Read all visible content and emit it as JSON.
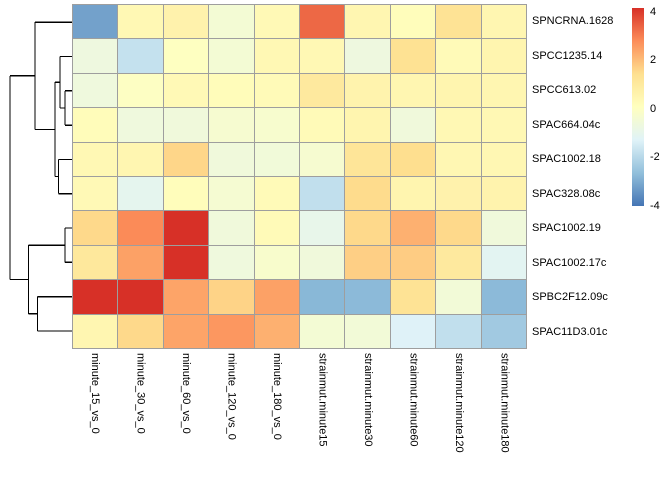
{
  "chart_data": {
    "type": "heatmap",
    "title": "",
    "columns": [
      "minute_15_vs_0",
      "minute_30_vs_0",
      "minute_60_vs_0",
      "minute_120_vs_0",
      "minute_180_vs_0",
      "strainmut.minute15",
      "strainmut.minute30",
      "strainmut.minute60",
      "strainmut.minute120",
      "strainmut.minute180"
    ],
    "rows": [
      "SPNCRNA.1628",
      "SPCC1235.14",
      "SPCC613.02",
      "SPAC664.04c",
      "SPAC1002.18",
      "SPAC328.08c",
      "SPAC1002.19",
      "SPAC1002.17c",
      "SPBC2F12.09c",
      "SPAC11D3.01c"
    ],
    "values": [
      [
        -3.2,
        0.3,
        0.55,
        -0.5,
        0.25,
        3.2,
        0.4,
        0.1,
        1.2,
        0.4
      ],
      [
        -0.75,
        -1.8,
        -0.05,
        -0.5,
        0.3,
        0.3,
        -0.75,
        1.25,
        0.2,
        0.45
      ],
      [
        -0.7,
        -0.1,
        0.25,
        0.15,
        0.2,
        0.95,
        0.5,
        0.4,
        0.45,
        0.4
      ],
      [
        0.15,
        -0.7,
        -0.65,
        -0.4,
        -0.35,
        0.2,
        0.45,
        -0.65,
        0.3,
        0.3
      ],
      [
        0.3,
        0.4,
        1.5,
        -0.65,
        -0.6,
        -0.4,
        1.1,
        1.35,
        0.35,
        0.35
      ],
      [
        0.25,
        -1.1,
        0.1,
        -0.45,
        0.2,
        -1.85,
        1.4,
        0.45,
        0.55,
        0.5
      ],
      [
        1.45,
        2.7,
        4.0,
        -0.65,
        0.2,
        -1.0,
        1.45,
        2.1,
        1.45,
        -0.65
      ],
      [
        1.0,
        2.35,
        4.0,
        -0.7,
        -0.3,
        -0.65,
        1.6,
        1.65,
        0.95,
        -1.2
      ],
      [
        4.0,
        4.0,
        2.3,
        1.55,
        2.35,
        -2.8,
        -2.75,
        1.2,
        -0.55,
        -2.75
      ],
      [
        0.4,
        1.45,
        2.3,
        2.5,
        2.1,
        -0.5,
        -0.55,
        -1.35,
        -1.85,
        -2.4
      ]
    ],
    "value_domain": [
      -4,
      4
    ],
    "palette": [
      "#4575B4",
      "#91BFDB",
      "#E0F3F8",
      "#FFFFBF",
      "#FEE090",
      "#FC8D59",
      "#D73027"
    ],
    "legend_ticks": [
      "4",
      "2",
      "0",
      "-2",
      "-4"
    ],
    "grid_line_color": "#9e9e9e",
    "dendrogram": {
      "line_color": "#000000",
      "segments": [
        [
          35,
          22.2,
          73,
          22.2
        ],
        [
          60,
          56.5,
          73,
          56.5
        ],
        [
          65,
          90.8,
          73,
          90.8
        ],
        [
          65,
          125.1,
          73,
          125.1
        ],
        [
          65,
          90.8,
          65,
          125.1
        ],
        [
          60,
          108.0,
          65,
          108.0
        ],
        [
          60,
          56.5,
          60,
          108.0
        ],
        [
          55,
          82.2,
          60,
          82.2
        ],
        [
          58.5,
          159.4,
          73,
          159.4
        ],
        [
          58.5,
          193.7,
          73,
          193.7
        ],
        [
          58.5,
          159.4,
          58.5,
          193.7
        ],
        [
          55,
          176.5,
          58.5,
          176.5
        ],
        [
          55,
          82.2,
          55,
          176.5
        ],
        [
          35,
          129.4,
          55,
          129.4
        ],
        [
          35,
          22.2,
          35,
          129.4
        ],
        [
          10,
          75.8,
          35,
          75.8
        ],
        [
          65,
          228.0,
          73,
          228.0
        ],
        [
          65,
          262.3,
          73,
          262.3
        ],
        [
          65,
          228.0,
          65,
          262.3
        ],
        [
          28.5,
          245.2,
          65,
          245.2
        ],
        [
          37.5,
          296.6,
          73,
          296.6
        ],
        [
          37.5,
          330.9,
          73,
          330.9
        ],
        [
          37.5,
          296.6,
          37.5,
          330.9
        ],
        [
          28.5,
          313.8,
          37.5,
          313.8
        ],
        [
          28.5,
          245.2,
          28.5,
          313.8
        ],
        [
          10,
          279.5,
          28.5,
          279.5
        ],
        [
          10,
          75.8,
          10,
          279.5
        ]
      ]
    }
  }
}
